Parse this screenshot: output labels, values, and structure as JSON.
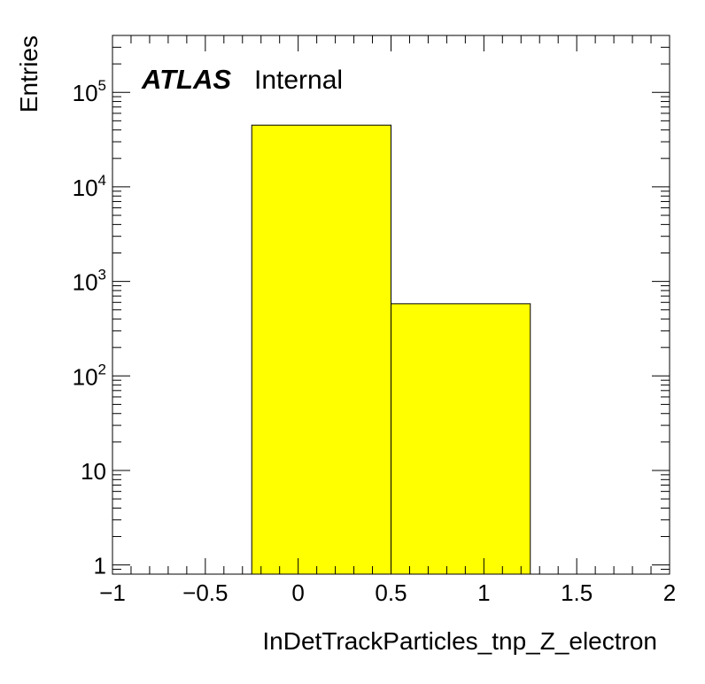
{
  "chart_data": {
    "type": "bar",
    "histogram": true,
    "xlabel": "InDetTrackParticles_tnp_Z_electron",
    "ylabel": "Entries",
    "xlim": [
      -1,
      2
    ],
    "ylim": [
      0.8,
      400000
    ],
    "yscale": "log",
    "grid": false,
    "x_tick_labels": [
      "−1",
      "−0.5",
      "0",
      "0.5",
      "1",
      "1.5",
      "2"
    ],
    "y_tick_labels": [
      {
        "text": "1",
        "value": 1
      },
      {
        "text": "10",
        "value": 10
      },
      {
        "base": "10",
        "exp": "2",
        "value": 100
      },
      {
        "base": "10",
        "exp": "3",
        "value": 1000
      },
      {
        "base": "10",
        "exp": "4",
        "value": 10000
      },
      {
        "base": "10",
        "exp": "5",
        "value": 100000
      }
    ],
    "bins": [
      {
        "low": -0.25,
        "high": 0.5,
        "value": 45000
      },
      {
        "low": 0.5,
        "high": 1.25,
        "value": 580
      }
    ],
    "fill_color": "#ffff00",
    "edge_color": "#000000",
    "label": {
      "experiment": "ATLAS",
      "status": "Internal"
    }
  }
}
